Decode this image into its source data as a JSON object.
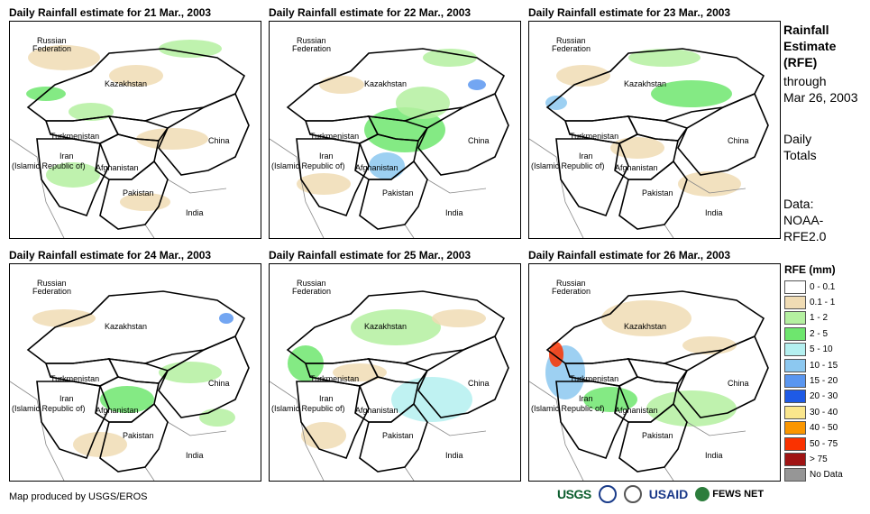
{
  "panels": [
    {
      "title": "Daily Rainfall estimate for 21 Mar., 2003"
    },
    {
      "title": "Daily Rainfall estimate for 22 Mar., 2003"
    },
    {
      "title": "Daily Rainfall estimate for 23 Mar., 2003"
    },
    {
      "title": "Daily Rainfall estimate for 24 Mar., 2003"
    },
    {
      "title": "Daily Rainfall estimate for 25 Mar., 2003"
    },
    {
      "title": "Daily Rainfall estimate for 26 Mar., 2003"
    }
  ],
  "places": {
    "russia_1": "Russian",
    "russia_2": "Federation",
    "kazakhstan": "Kazakhstan",
    "turkmenistan": "Turkmenistan",
    "iran_1": "Iran",
    "iran_2": "(Islamic Republic of)",
    "afghanistan": "Afghanistan",
    "pakistan": "Pakistan",
    "china": "China",
    "india": "India"
  },
  "side": {
    "title_1": "Rainfall",
    "title_2": "Estimate",
    "title_3": "(RFE)",
    "through": "through",
    "date": "Mar 26, 2003",
    "totals_1": "Daily",
    "totals_2": "Totals",
    "data_1": "Data:",
    "data_2": "NOAA-",
    "data_3": "RFE2.0"
  },
  "legend": {
    "title": "RFE (mm)",
    "items": [
      {
        "label": "0 - 0.1",
        "color": "#ffffff"
      },
      {
        "label": "0.1 - 1",
        "color": "#f0dcb4"
      },
      {
        "label": "1 - 2",
        "color": "#b4f0a0"
      },
      {
        "label": "2 - 5",
        "color": "#6ee66e"
      },
      {
        "label": "5 - 10",
        "color": "#b4f0f0"
      },
      {
        "label": "10 - 15",
        "color": "#8cc8f0"
      },
      {
        "label": "15 - 20",
        "color": "#5a96f0"
      },
      {
        "label": "20 - 30",
        "color": "#1e5ae6"
      },
      {
        "label": "30 - 40",
        "color": "#fae68c"
      },
      {
        "label": "40 - 50",
        "color": "#fa9600"
      },
      {
        "label": "50 - 75",
        "color": "#fa3200"
      },
      {
        "label": "> 75",
        "color": "#a01414"
      },
      {
        "label": "No Data",
        "color": "#969696"
      }
    ]
  },
  "credit": "Map produced by USGS/EROS",
  "logos": {
    "usgs": "USGS",
    "usaid": "USAID",
    "fews": "FEWS NET"
  }
}
